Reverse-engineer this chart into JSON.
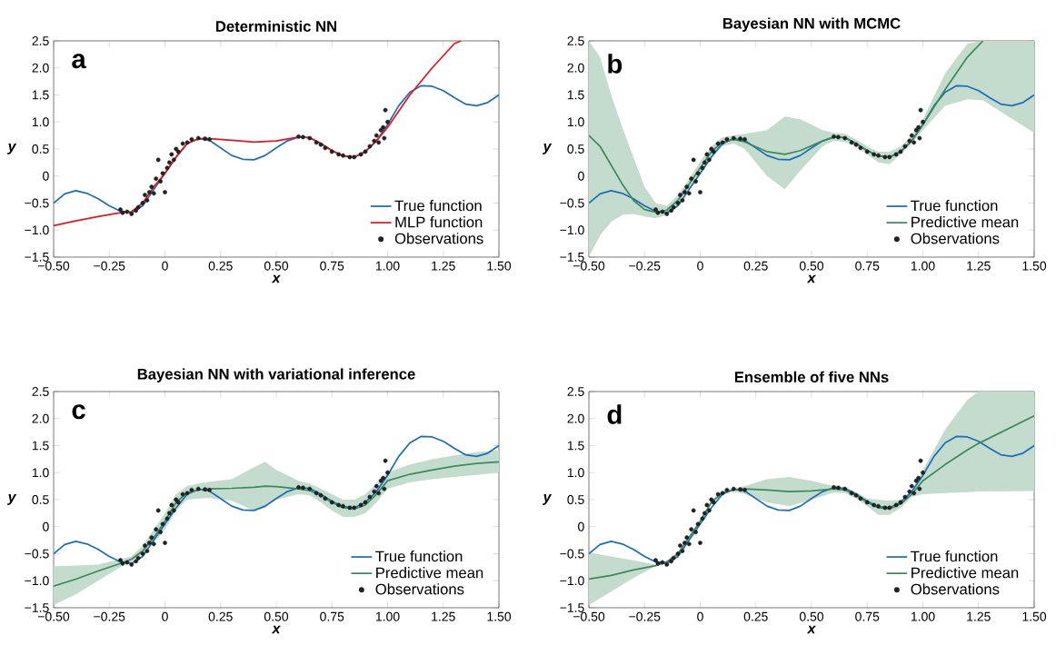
{
  "chart_data": [
    {
      "type": "line",
      "title": "Deterministic NN",
      "xlabel": "x",
      "ylabel": "y",
      "annotations": [
        "a"
      ],
      "legend": "bottom right",
      "xlim": [
        -0.5,
        1.5
      ],
      "ylim": [
        -1.5,
        2.5
      ],
      "xticks": [
        {
          "value": -0.5,
          "label": "−0.50"
        },
        {
          "value": -0.25,
          "label": "−0.25"
        },
        0,
        0.25,
        {
          "value": 0.5,
          "label": "0.50"
        },
        0.75,
        {
          "value": 1,
          "label": "1.00"
        },
        1.25,
        {
          "value": 1.5,
          "label": "1.50"
        }
      ],
      "yticks": [
        {
          "value": -1.5,
          "label": "−1.5"
        },
        {
          "value": -1,
          "label": "−1.0"
        },
        {
          "value": -0.5,
          "label": "−0.5"
        },
        0,
        0.5,
        {
          "value": 1,
          "label": "1.0"
        },
        1.5,
        {
          "value": 2,
          "label": "2.0"
        },
        2.5
      ],
      "x": [
        -0.5,
        -0.45,
        -0.4,
        -0.35,
        -0.3,
        -0.25,
        -0.2,
        -0.15,
        -0.1,
        -0.05,
        0,
        0.05,
        0.1,
        0.15,
        0.2,
        0.25,
        0.3,
        0.35,
        0.4,
        0.45,
        0.5,
        0.55,
        0.6,
        0.65,
        0.7,
        0.75,
        0.8,
        0.85,
        0.9,
        0.95,
        1.0,
        1.05,
        1.1,
        1.15,
        1.2,
        1.25,
        1.3,
        1.35,
        1.4,
        1.45,
        1.5
      ],
      "series": [
        {
          "name": "True function",
          "color": "#1b6fb8",
          "values": [
            -0.5,
            -0.33,
            -0.27,
            -0.32,
            -0.42,
            -0.55,
            -0.65,
            -0.68,
            -0.55,
            -0.25,
            0.05,
            0.35,
            0.6,
            0.69,
            0.66,
            0.52,
            0.38,
            0.31,
            0.3,
            0.38,
            0.52,
            0.65,
            0.72,
            0.71,
            0.6,
            0.47,
            0.37,
            0.35,
            0.45,
            0.65,
            0.95,
            1.3,
            1.55,
            1.67,
            1.66,
            1.58,
            1.45,
            1.33,
            1.3,
            1.36,
            1.5
          ]
        },
        {
          "name": "MLP function",
          "color": "#e5161e",
          "x": [
            -0.5,
            -0.4,
            -0.3,
            -0.2,
            -0.15,
            -0.1,
            -0.05,
            0,
            0.05,
            0.1,
            0.15,
            0.2,
            0.3,
            0.4,
            0.5,
            0.6,
            0.65,
            0.7,
            0.75,
            0.8,
            0.85,
            0.9,
            0.95,
            1.0,
            1.1,
            1.2,
            1.3,
            1.33
          ],
          "values": [
            -0.92,
            -0.83,
            -0.75,
            -0.68,
            -0.66,
            -0.5,
            -0.2,
            0.05,
            0.35,
            0.6,
            0.69,
            0.69,
            0.66,
            0.63,
            0.65,
            0.72,
            0.71,
            0.6,
            0.47,
            0.37,
            0.35,
            0.45,
            0.65,
            0.9,
            1.5,
            2.0,
            2.45,
            2.5
          ]
        },
        {
          "name": "Observations",
          "type": "scatter",
          "color": "#222222",
          "x": [
            -0.2,
            -0.19,
            -0.17,
            -0.15,
            -0.13,
            -0.12,
            -0.1,
            -0.09,
            -0.08,
            -0.07,
            -0.06,
            -0.05,
            -0.04,
            -0.03,
            -0.02,
            -0.01,
            0,
            0.01,
            0.02,
            0.03,
            0.04,
            0.05,
            0.06,
            0.08,
            0.1,
            0.12,
            0.15,
            0.18,
            0.2,
            0.6,
            0.62,
            0.65,
            0.68,
            0.7,
            0.72,
            0.75,
            0.78,
            0.8,
            0.83,
            0.85,
            0.88,
            0.9,
            0.92,
            0.94,
            0.95,
            0.96,
            0.97,
            0.98,
            0.985,
            0.99,
            1.0
          ],
          "values": [
            -0.62,
            -0.68,
            -0.66,
            -0.7,
            -0.64,
            -0.58,
            -0.5,
            -0.35,
            -0.45,
            -0.3,
            -0.2,
            -0.32,
            -0.05,
            0.3,
            -0.1,
            0.05,
            -0.3,
            0.15,
            0.25,
            0.4,
            0.3,
            0.5,
            0.45,
            0.6,
            0.62,
            0.68,
            0.7,
            0.69,
            0.68,
            0.73,
            0.72,
            0.7,
            0.62,
            0.58,
            0.52,
            0.45,
            0.4,
            0.38,
            0.35,
            0.35,
            0.4,
            0.45,
            0.55,
            0.65,
            0.75,
            0.62,
            0.85,
            0.9,
            0.7,
            1.22,
            1.0
          ]
        }
      ]
    },
    {
      "type": "line",
      "title": "Bayesian NN with MCMC",
      "xlabel": "x",
      "ylabel": "y",
      "annotations": [
        "b"
      ],
      "legend": "bottom right",
      "xlim": [
        -0.5,
        1.5
      ],
      "ylim": [
        -1.5,
        2.5
      ],
      "xticks": [
        {
          "value": -0.5,
          "label": "−0.50"
        },
        {
          "value": -0.25,
          "label": "−0.25"
        },
        0,
        0.25,
        {
          "value": 0.5,
          "label": "0.50"
        },
        0.75,
        {
          "value": 1,
          "label": "1.00"
        },
        1.25,
        {
          "value": 1.5,
          "label": "1.50"
        }
      ],
      "yticks": [
        {
          "value": -1.5,
          "label": "−1.5"
        },
        {
          "value": -1,
          "label": "−1.0"
        },
        {
          "value": -0.5,
          "label": "−0.5"
        },
        0,
        0.5,
        {
          "value": 1,
          "label": "1.0"
        },
        1.5,
        {
          "value": 2,
          "label": "2.0"
        },
        2.5
      ],
      "x": [
        -0.5,
        -0.45,
        -0.4,
        -0.35,
        -0.3,
        -0.25,
        -0.2,
        -0.15,
        -0.1,
        -0.05,
        0,
        0.05,
        0.1,
        0.15,
        0.2,
        0.25,
        0.3,
        0.35,
        0.4,
        0.45,
        0.5,
        0.55,
        0.6,
        0.65,
        0.7,
        0.75,
        0.8,
        0.85,
        0.9,
        0.95,
        1.0,
        1.05,
        1.1,
        1.15,
        1.2,
        1.25,
        1.3,
        1.35,
        1.4,
        1.45,
        1.5
      ],
      "series": [
        {
          "name": "True function",
          "color": "#1b6fb8",
          "values": [
            -0.5,
            -0.33,
            -0.27,
            -0.32,
            -0.42,
            -0.55,
            -0.65,
            -0.68,
            -0.55,
            -0.25,
            0.05,
            0.35,
            0.6,
            0.69,
            0.66,
            0.52,
            0.38,
            0.31,
            0.3,
            0.38,
            0.52,
            0.65,
            0.72,
            0.71,
            0.6,
            0.47,
            0.37,
            0.35,
            0.45,
            0.65,
            0.95,
            1.3,
            1.55,
            1.67,
            1.66,
            1.58,
            1.45,
            1.33,
            1.3,
            1.36,
            1.5
          ]
        },
        {
          "name": "Predictive mean",
          "color": "#3c8a5c",
          "x": [
            -0.5,
            -0.45,
            -0.4,
            -0.35,
            -0.3,
            -0.25,
            -0.2,
            -0.15,
            -0.1,
            -0.05,
            0,
            0.05,
            0.1,
            0.15,
            0.2,
            0.3,
            0.38,
            0.45,
            0.55,
            0.6,
            0.65,
            0.7,
            0.75,
            0.8,
            0.85,
            0.9,
            0.95,
            1.0,
            1.1,
            1.2,
            1.27,
            1.5
          ],
          "values": [
            0.75,
            0.55,
            0.2,
            -0.15,
            -0.45,
            -0.62,
            -0.67,
            -0.63,
            -0.45,
            -0.15,
            0.15,
            0.45,
            0.63,
            0.68,
            0.63,
            0.45,
            0.4,
            0.47,
            0.65,
            0.72,
            0.71,
            0.6,
            0.47,
            0.37,
            0.35,
            0.45,
            0.65,
            0.95,
            1.6,
            2.2,
            2.5,
            null
          ],
          "lower": [
            -1.5,
            -1.1,
            -0.85,
            -0.72,
            -0.7,
            -0.75,
            -0.78,
            -0.72,
            -0.55,
            -0.25,
            0.05,
            0.35,
            0.55,
            0.6,
            0.5,
            0.0,
            -0.25,
            0.1,
            0.55,
            0.65,
            0.63,
            0.55,
            0.4,
            0.25,
            0.22,
            0.4,
            0.6,
            0.85,
            1.3,
            1.42,
            1.4,
            0.8
          ],
          "upper": [
            2.5,
            2.2,
            1.5,
            0.9,
            0.35,
            -0.2,
            -0.5,
            -0.55,
            -0.35,
            -0.05,
            0.27,
            0.55,
            0.72,
            0.75,
            0.78,
            0.85,
            1.1,
            1.05,
            0.85,
            0.8,
            0.78,
            0.68,
            0.55,
            0.45,
            0.45,
            0.55,
            0.75,
            1.05,
            1.9,
            2.45,
            2.5,
            2.5
          ]
        },
        {
          "name": "Observations",
          "type": "scatter",
          "color": "#222222",
          "x": [
            -0.2,
            -0.19,
            -0.17,
            -0.15,
            -0.13,
            -0.12,
            -0.1,
            -0.09,
            -0.08,
            -0.07,
            -0.06,
            -0.05,
            -0.04,
            -0.03,
            -0.02,
            -0.01,
            0,
            0.01,
            0.02,
            0.03,
            0.04,
            0.05,
            0.06,
            0.08,
            0.1,
            0.12,
            0.15,
            0.18,
            0.2,
            0.6,
            0.62,
            0.65,
            0.68,
            0.7,
            0.72,
            0.75,
            0.78,
            0.8,
            0.83,
            0.85,
            0.88,
            0.9,
            0.92,
            0.94,
            0.95,
            0.96,
            0.97,
            0.98,
            0.985,
            0.99,
            1.0
          ],
          "values": [
            -0.62,
            -0.68,
            -0.66,
            -0.7,
            -0.64,
            -0.58,
            -0.5,
            -0.35,
            -0.45,
            -0.3,
            -0.2,
            -0.32,
            -0.05,
            0.3,
            -0.1,
            0.05,
            -0.3,
            0.15,
            0.25,
            0.4,
            0.3,
            0.5,
            0.45,
            0.6,
            0.62,
            0.68,
            0.7,
            0.69,
            0.68,
            0.73,
            0.72,
            0.7,
            0.62,
            0.58,
            0.52,
            0.45,
            0.4,
            0.38,
            0.35,
            0.35,
            0.4,
            0.45,
            0.55,
            0.65,
            0.75,
            0.62,
            0.85,
            0.9,
            0.7,
            1.22,
            1.0
          ]
        }
      ]
    },
    {
      "type": "line",
      "title": "Bayesian NN with variational inference",
      "xlabel": "x",
      "ylabel": "y",
      "annotations": [
        "c"
      ],
      "legend": "bottom right",
      "xlim": [
        -0.5,
        1.5
      ],
      "ylim": [
        -1.5,
        2.5
      ],
      "xticks": [
        {
          "value": -0.5,
          "label": "−0.50"
        },
        {
          "value": -0.25,
          "label": "−0.25"
        },
        0,
        0.25,
        {
          "value": 0.5,
          "label": "0.50"
        },
        0.75,
        {
          "value": 1,
          "label": "1.00"
        },
        1.25,
        {
          "value": 1.5,
          "label": "1.50"
        }
      ],
      "yticks": [
        {
          "value": -1.5,
          "label": "−1.5"
        },
        {
          "value": -1,
          "label": "−1.0"
        },
        {
          "value": -0.5,
          "label": "−0.5"
        },
        0,
        0.5,
        {
          "value": 1,
          "label": "1.0"
        },
        1.5,
        {
          "value": 2,
          "label": "2.0"
        },
        2.5
      ],
      "x": [
        -0.5,
        -0.45,
        -0.4,
        -0.35,
        -0.3,
        -0.25,
        -0.2,
        -0.15,
        -0.1,
        -0.05,
        0,
        0.05,
        0.1,
        0.15,
        0.2,
        0.25,
        0.3,
        0.35,
        0.4,
        0.45,
        0.5,
        0.55,
        0.6,
        0.65,
        0.7,
        0.75,
        0.8,
        0.85,
        0.9,
        0.95,
        1.0,
        1.05,
        1.1,
        1.15,
        1.2,
        1.25,
        1.3,
        1.35,
        1.4,
        1.45,
        1.5
      ],
      "series": [
        {
          "name": "True function",
          "color": "#1b6fb8",
          "values": [
            -0.5,
            -0.33,
            -0.27,
            -0.32,
            -0.42,
            -0.55,
            -0.65,
            -0.68,
            -0.55,
            -0.25,
            0.05,
            0.35,
            0.6,
            0.69,
            0.66,
            0.52,
            0.38,
            0.31,
            0.3,
            0.38,
            0.52,
            0.65,
            0.72,
            0.71,
            0.6,
            0.47,
            0.37,
            0.35,
            0.45,
            0.65,
            0.95,
            1.3,
            1.55,
            1.67,
            1.66,
            1.58,
            1.45,
            1.33,
            1.3,
            1.36,
            1.5
          ]
        },
        {
          "name": "Predictive mean",
          "color": "#3c8a5c",
          "x": [
            -0.5,
            -0.4,
            -0.3,
            -0.2,
            -0.15,
            -0.1,
            -0.05,
            0,
            0.05,
            0.1,
            0.15,
            0.2,
            0.3,
            0.4,
            0.45,
            0.5,
            0.6,
            0.65,
            0.7,
            0.75,
            0.8,
            0.85,
            0.9,
            0.95,
            1.0,
            1.1,
            1.2,
            1.3,
            1.4,
            1.5
          ],
          "values": [
            -1.1,
            -0.97,
            -0.82,
            -0.68,
            -0.6,
            -0.45,
            -0.2,
            0.1,
            0.45,
            0.63,
            0.68,
            0.7,
            0.71,
            0.73,
            0.75,
            0.74,
            0.7,
            0.67,
            0.58,
            0.45,
            0.35,
            0.33,
            0.4,
            0.6,
            0.85,
            0.97,
            1.05,
            1.12,
            1.17,
            1.2
          ],
          "lower": [
            -1.45,
            -1.25,
            -1.0,
            -0.75,
            -0.65,
            -0.5,
            -0.3,
            -0.05,
            0.3,
            0.5,
            0.52,
            0.53,
            0.48,
            0.3,
            0.35,
            0.5,
            0.6,
            0.58,
            0.45,
            0.3,
            0.18,
            0.18,
            0.25,
            0.45,
            0.7,
            0.82,
            0.88,
            0.92,
            0.96,
            1.0
          ],
          "upper": [
            -0.73,
            -0.72,
            -0.7,
            -0.6,
            -0.55,
            -0.35,
            -0.05,
            0.25,
            0.6,
            0.75,
            0.8,
            0.83,
            0.88,
            1.1,
            1.2,
            1.05,
            0.85,
            0.8,
            0.7,
            0.6,
            0.5,
            0.5,
            0.6,
            0.8,
            1.0,
            1.15,
            1.25,
            1.32,
            1.38,
            1.42
          ]
        },
        {
          "name": "Observations",
          "type": "scatter",
          "color": "#222222",
          "x": [
            -0.2,
            -0.19,
            -0.17,
            -0.15,
            -0.13,
            -0.12,
            -0.1,
            -0.09,
            -0.08,
            -0.07,
            -0.06,
            -0.05,
            -0.04,
            -0.03,
            -0.02,
            -0.01,
            0,
            0.01,
            0.02,
            0.03,
            0.04,
            0.05,
            0.06,
            0.08,
            0.1,
            0.12,
            0.15,
            0.18,
            0.2,
            0.6,
            0.62,
            0.65,
            0.68,
            0.7,
            0.72,
            0.75,
            0.78,
            0.8,
            0.83,
            0.85,
            0.88,
            0.9,
            0.92,
            0.94,
            0.95,
            0.96,
            0.97,
            0.98,
            0.985,
            0.99,
            1.0
          ],
          "values": [
            -0.62,
            -0.68,
            -0.66,
            -0.7,
            -0.64,
            -0.58,
            -0.5,
            -0.35,
            -0.45,
            -0.3,
            -0.2,
            -0.32,
            -0.05,
            0.3,
            -0.1,
            0.05,
            -0.3,
            0.15,
            0.25,
            0.4,
            0.3,
            0.5,
            0.45,
            0.6,
            0.62,
            0.68,
            0.7,
            0.69,
            0.68,
            0.73,
            0.72,
            0.7,
            0.62,
            0.58,
            0.52,
            0.45,
            0.4,
            0.38,
            0.35,
            0.35,
            0.4,
            0.45,
            0.55,
            0.65,
            0.75,
            0.62,
            0.85,
            0.9,
            0.7,
            1.22,
            1.0
          ]
        }
      ]
    },
    {
      "type": "line",
      "title": "Ensemble of five NNs",
      "xlabel": "x",
      "ylabel": "y",
      "annotations": [
        "d"
      ],
      "legend": "bottom right",
      "xlim": [
        -0.5,
        1.5
      ],
      "ylim": [
        -1.5,
        2.5
      ],
      "xticks": [
        {
          "value": -0.5,
          "label": "−0.50"
        },
        {
          "value": -0.25,
          "label": "−0.25"
        },
        0,
        0.25,
        {
          "value": 0.5,
          "label": "0.50"
        },
        0.75,
        {
          "value": 1,
          "label": "1.00"
        },
        1.25,
        {
          "value": 1.5,
          "label": "1.50"
        }
      ],
      "yticks": [
        {
          "value": -1.5,
          "label": "−1.5"
        },
        {
          "value": -1,
          "label": "−1.0"
        },
        {
          "value": -0.5,
          "label": "−0.5"
        },
        0,
        0.5,
        {
          "value": 1,
          "label": "1.0"
        },
        1.5,
        {
          "value": 2,
          "label": "2.0"
        },
        2.5
      ],
      "x": [
        -0.5,
        -0.45,
        -0.4,
        -0.35,
        -0.3,
        -0.25,
        -0.2,
        -0.15,
        -0.1,
        -0.05,
        0,
        0.05,
        0.1,
        0.15,
        0.2,
        0.25,
        0.3,
        0.35,
        0.4,
        0.45,
        0.5,
        0.55,
        0.6,
        0.65,
        0.7,
        0.75,
        0.8,
        0.85,
        0.9,
        0.95,
        1.0,
        1.05,
        1.1,
        1.15,
        1.2,
        1.25,
        1.3,
        1.35,
        1.4,
        1.45,
        1.5
      ],
      "series": [
        {
          "name": "True function",
          "color": "#1b6fb8",
          "values": [
            -0.5,
            -0.33,
            -0.27,
            -0.32,
            -0.42,
            -0.55,
            -0.65,
            -0.68,
            -0.55,
            -0.25,
            0.05,
            0.35,
            0.6,
            0.69,
            0.66,
            0.52,
            0.38,
            0.31,
            0.3,
            0.38,
            0.52,
            0.65,
            0.72,
            0.71,
            0.6,
            0.47,
            0.37,
            0.35,
            0.45,
            0.65,
            0.95,
            1.3,
            1.55,
            1.67,
            1.66,
            1.58,
            1.45,
            1.33,
            1.3,
            1.36,
            1.5
          ]
        },
        {
          "name": "Predictive mean",
          "color": "#3c8a5c",
          "x": [
            -0.5,
            -0.4,
            -0.3,
            -0.2,
            -0.15,
            -0.1,
            -0.05,
            0,
            0.05,
            0.1,
            0.15,
            0.2,
            0.3,
            0.4,
            0.5,
            0.6,
            0.65,
            0.7,
            0.75,
            0.8,
            0.85,
            0.9,
            0.95,
            1.0,
            1.1,
            1.2,
            1.25,
            1.5
          ],
          "values": [
            -0.97,
            -0.9,
            -0.8,
            -0.72,
            -0.65,
            -0.5,
            -0.2,
            0.1,
            0.45,
            0.63,
            0.68,
            0.7,
            0.68,
            0.65,
            0.66,
            0.7,
            0.68,
            0.58,
            0.45,
            0.35,
            0.33,
            0.42,
            0.6,
            0.85,
            1.15,
            1.42,
            1.54,
            2.05
          ],
          "lower": [
            -1.45,
            -1.2,
            -0.95,
            -0.73,
            -0.67,
            -0.52,
            -0.22,
            0.08,
            0.43,
            0.6,
            0.65,
            0.6,
            0.45,
            0.38,
            0.5,
            0.63,
            0.62,
            0.52,
            0.38,
            0.22,
            0.22,
            0.35,
            0.55,
            0.6,
            0.62,
            0.64,
            0.65,
            0.66
          ],
          "upper": [
            -0.48,
            -0.55,
            -0.62,
            -0.7,
            -0.63,
            -0.48,
            -0.17,
            0.12,
            0.47,
            0.66,
            0.71,
            0.75,
            0.88,
            0.92,
            0.85,
            0.75,
            0.73,
            0.64,
            0.52,
            0.5,
            0.48,
            0.5,
            0.65,
            1.05,
            1.8,
            2.35,
            2.5,
            2.5
          ]
        },
        {
          "name": "Observations",
          "type": "scatter",
          "color": "#222222",
          "x": [
            -0.2,
            -0.19,
            -0.17,
            -0.15,
            -0.13,
            -0.12,
            -0.1,
            -0.09,
            -0.08,
            -0.07,
            -0.06,
            -0.05,
            -0.04,
            -0.03,
            -0.02,
            -0.01,
            0,
            0.01,
            0.02,
            0.03,
            0.04,
            0.05,
            0.06,
            0.08,
            0.1,
            0.12,
            0.15,
            0.18,
            0.2,
            0.6,
            0.62,
            0.65,
            0.68,
            0.7,
            0.72,
            0.75,
            0.78,
            0.8,
            0.83,
            0.85,
            0.88,
            0.9,
            0.92,
            0.94,
            0.95,
            0.96,
            0.97,
            0.98,
            0.985,
            0.99,
            1.0
          ],
          "values": [
            -0.62,
            -0.68,
            -0.66,
            -0.7,
            -0.64,
            -0.58,
            -0.5,
            -0.35,
            -0.45,
            -0.3,
            -0.2,
            -0.32,
            -0.05,
            0.3,
            -0.1,
            0.05,
            -0.3,
            0.15,
            0.25,
            0.4,
            0.3,
            0.5,
            0.45,
            0.6,
            0.62,
            0.68,
            0.7,
            0.69,
            0.68,
            0.73,
            0.72,
            0.7,
            0.62,
            0.58,
            0.52,
            0.45,
            0.4,
            0.38,
            0.35,
            0.35,
            0.4,
            0.45,
            0.55,
            0.65,
            0.75,
            0.62,
            0.85,
            0.9,
            0.7,
            1.22,
            1.0
          ]
        }
      ]
    }
  ]
}
